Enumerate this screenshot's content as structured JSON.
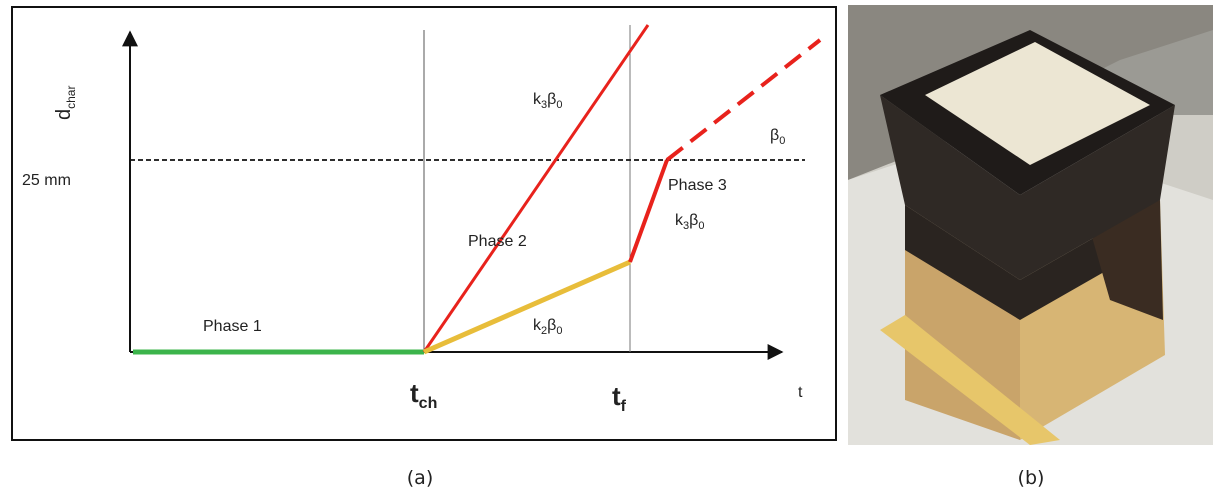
{
  "diagram": {
    "y_axis_label": {
      "main": "d",
      "sub": "char"
    },
    "level_label": "25 mm",
    "x_axis_label": "t",
    "time_labels": [
      {
        "main": "t",
        "sub": "ch"
      },
      {
        "main": "t",
        "sub": "f"
      }
    ],
    "phases": [
      "Phase 1",
      "Phase 2",
      "Phase 3"
    ],
    "rate_labels": [
      [
        {
          "main": "k",
          "sub": "3"
        },
        {
          "main": "β",
          "sub": "0"
        }
      ],
      [
        {
          "main": "k",
          "sub": "3"
        },
        {
          "main": "β",
          "sub": "0"
        }
      ],
      [
        {
          "main": "k",
          "sub": "2"
        },
        {
          "main": "β",
          "sub": "0"
        }
      ],
      [
        {
          "main": "β",
          "sub": "0"
        }
      ]
    ]
  },
  "captions": [
    "(a)",
    "(b)"
  ]
}
